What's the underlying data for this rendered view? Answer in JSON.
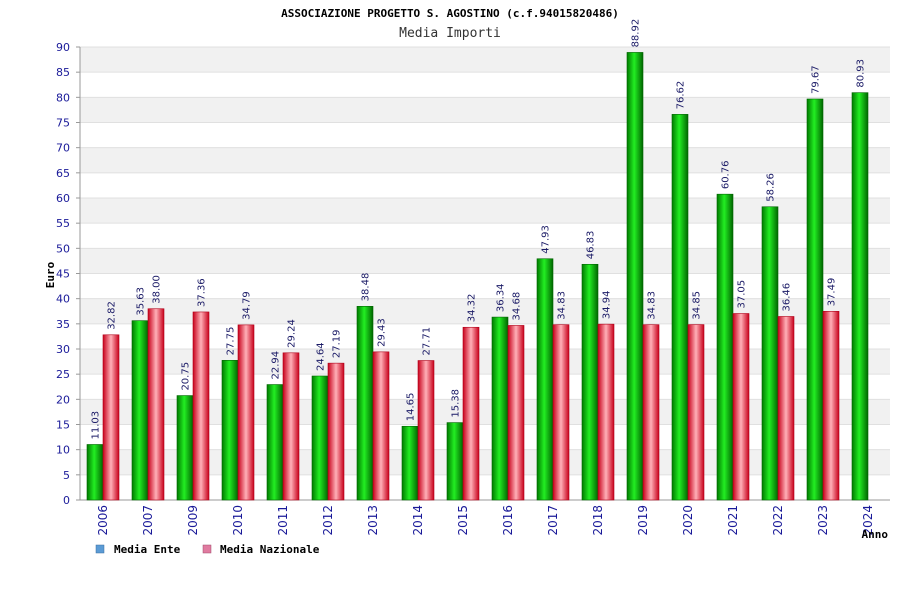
{
  "chart_data": {
    "type": "bar",
    "title": "ASSOCIAZIONE PROGETTO S. AGOSTINO (c.f.94015820486)",
    "subtitle": "Media Importi",
    "ylabel": "Euro",
    "xlabel": "Anno",
    "ylim": [
      0,
      90
    ],
    "yticks": [
      "0",
      "5",
      "10",
      "15",
      "20",
      "25",
      "30",
      "35",
      "40",
      "45",
      "50",
      "55",
      "60",
      "65",
      "70",
      "75",
      "80",
      "85",
      "90"
    ],
    "grid": true,
    "legend_position": "bottom-left",
    "categories": [
      "2006",
      "2007",
      "2009",
      "2010",
      "2011",
      "2012",
      "2013",
      "2014",
      "2015",
      "2016",
      "2017",
      "2018",
      "2019",
      "2020",
      "2021",
      "2022",
      "2023",
      "2024"
    ],
    "series": [
      {
        "name": "Media Ente",
        "color": "#00cc00",
        "legend_color": "#5b9bd5",
        "values": [
          11.03,
          35.63,
          20.75,
          27.75,
          22.94,
          24.64,
          38.48,
          14.65,
          15.38,
          36.34,
          47.93,
          46.83,
          88.92,
          76.62,
          60.76,
          58.26,
          79.67,
          80.93
        ],
        "labels": [
          "11.03",
          "35.63",
          "20.75",
          "27.75",
          "22.94",
          "24.64",
          "38.48",
          "14.65",
          "15.38",
          "36.34",
          "47.93",
          "46.83",
          "88.92",
          "76.62",
          "60.76",
          "58.26",
          "79.67",
          "80.93"
        ]
      },
      {
        "name": "Media Nazionale",
        "color": "#e8283c",
        "legend_color": "#e07ba0",
        "values": [
          32.82,
          38.0,
          37.36,
          34.79,
          29.24,
          27.19,
          29.43,
          27.71,
          34.32,
          34.68,
          34.83,
          34.94,
          34.83,
          34.85,
          37.05,
          36.46,
          37.49,
          null
        ],
        "labels": [
          "32.82",
          "38.00",
          "37.36",
          "34.79",
          "29.24",
          "27.19",
          "29.43",
          "27.71",
          "34.32",
          "34.68",
          "34.83",
          "34.94",
          "34.83",
          "34.85",
          "37.05",
          "36.46",
          "37.49",
          null
        ]
      }
    ]
  }
}
